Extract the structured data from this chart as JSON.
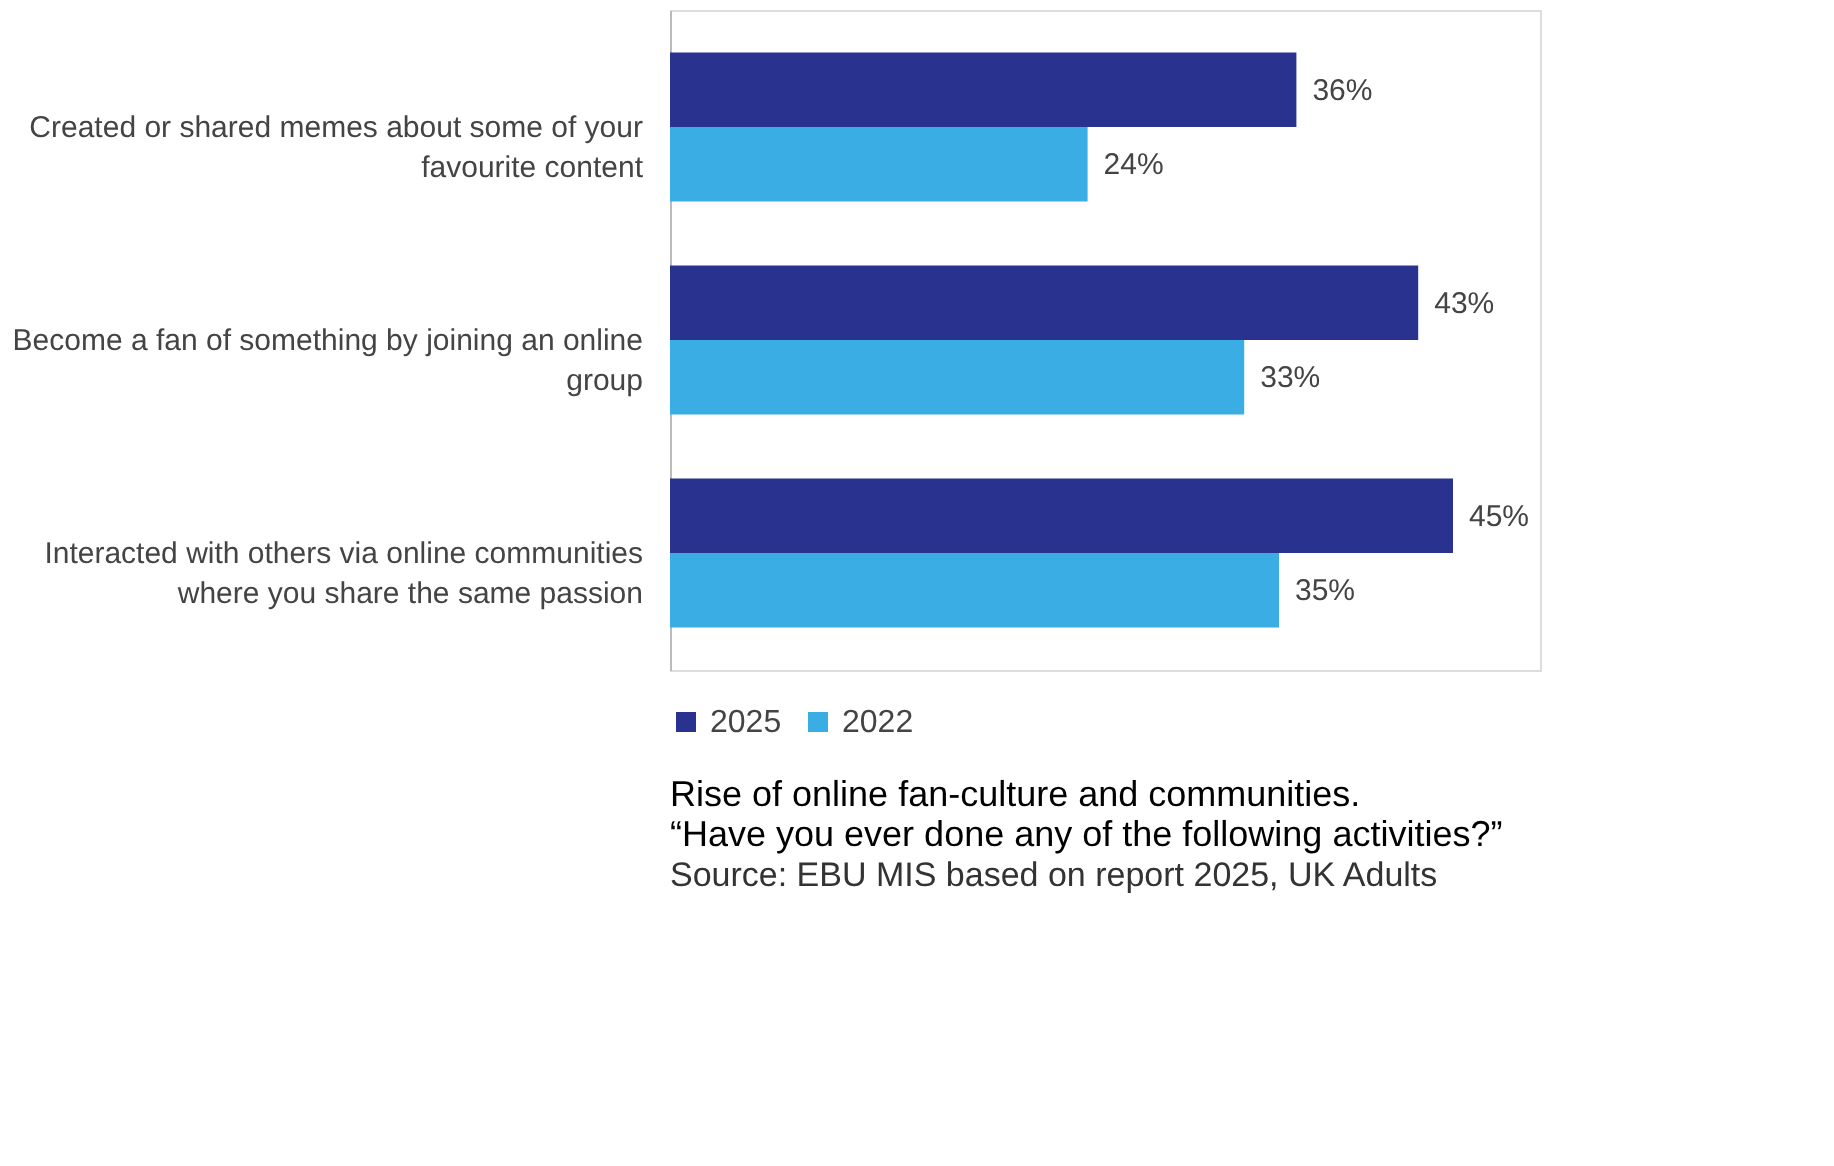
{
  "chart_data": {
    "type": "bar",
    "orientation": "horizontal",
    "title": "Rise of online fan-culture and communities.\n“Have you ever done any of the following activities?”",
    "annotations": [
      "Source: EBU MIS based on report 2025, UK Adults"
    ],
    "categories": [
      "Created or shared memes about some of your favourite content",
      "Become a fan of something by joining an online group",
      "Interacted with others via online communities where you share the same passion"
    ],
    "series": [
      {
        "name": "2025",
        "color": "#2a3290",
        "values": [
          36,
          43,
          45
        ],
        "value_labels": [
          "36%",
          "43%",
          "45%"
        ]
      },
      {
        "name": "2022",
        "color": "#3aaee4",
        "values": [
          24,
          33,
          35
        ],
        "value_labels": [
          "24%",
          "33%",
          "35%"
        ]
      }
    ],
    "xlim": [
      0,
      50
    ],
    "legend": "bottom"
  }
}
